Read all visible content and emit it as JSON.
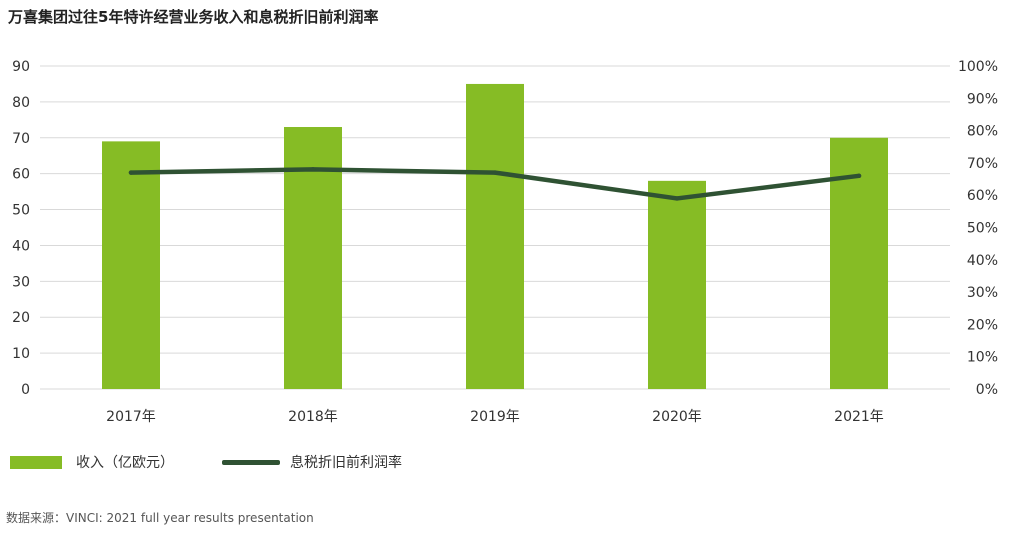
{
  "title": "万喜集团过往5年特许经营业务收入和息税折旧前利润率",
  "source": "数据来源：VINCI: 2021 full year results presentation",
  "colors": {
    "bar": "#86bc25",
    "line": "#2f5233",
    "grid": "#d9d9d9"
  },
  "chart_data": {
    "type": "bar+line",
    "categories": [
      "2017年",
      "2018年",
      "2019年",
      "2020年",
      "2021年"
    ],
    "series": [
      {
        "name": "收入（亿欧元）",
        "type": "bar",
        "axis": "left",
        "values": [
          69,
          73,
          85,
          58,
          70
        ]
      },
      {
        "name": "息税折旧前利润率",
        "type": "line",
        "axis": "right",
        "values": [
          67,
          68,
          67,
          59,
          66
        ]
      }
    ],
    "y_left": {
      "min": 0,
      "max": 90,
      "ticks": [
        "0",
        "10",
        "20",
        "30",
        "40",
        "50",
        "60",
        "70",
        "80",
        "90"
      ]
    },
    "y_right": {
      "min": 0,
      "max": 100,
      "ticks": [
        "0%",
        "10%",
        "20%",
        "30%",
        "40%",
        "50%",
        "60%",
        "70%",
        "80%",
        "90%",
        "100%"
      ]
    },
    "grid": true,
    "legend": "bottom-left"
  }
}
